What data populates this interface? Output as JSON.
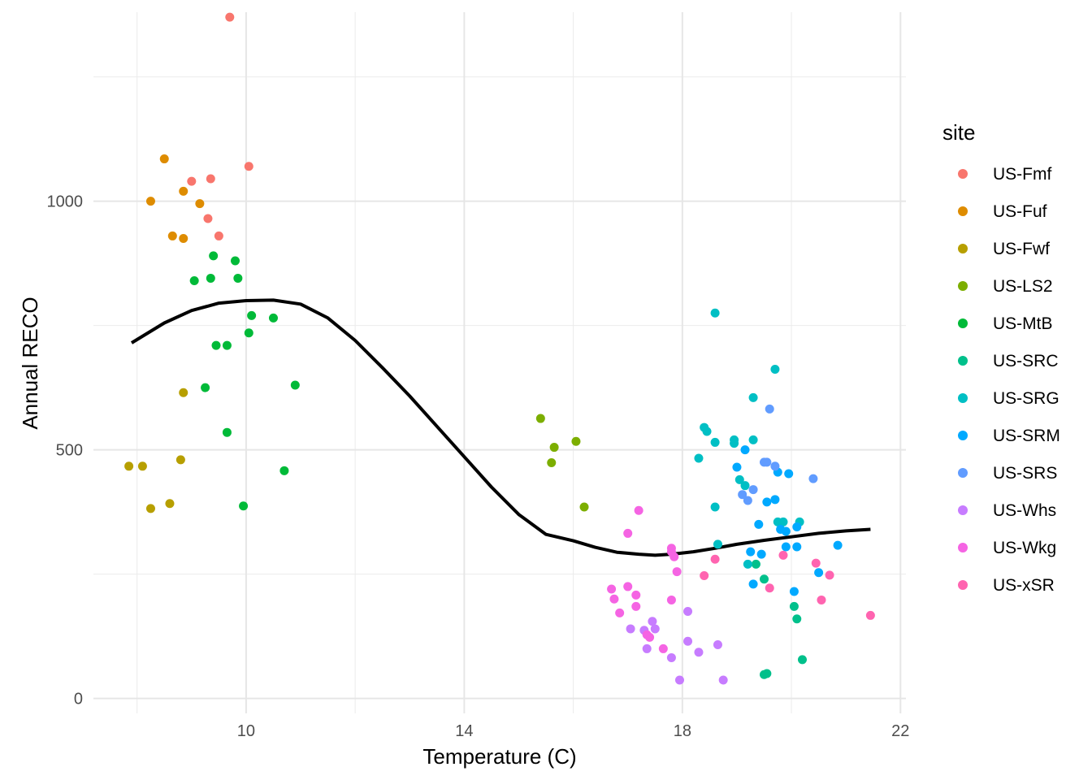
{
  "chart_data": {
    "type": "scatter",
    "xlabel": "Temperature (C)",
    "ylabel": "Annual RECO",
    "xlim": [
      7.2,
      22.1
    ],
    "ylim": [
      -30,
      1380
    ],
    "x_ticks": [
      10,
      14,
      18,
      22
    ],
    "y_ticks": [
      0,
      500,
      1000
    ],
    "x_ticks_minor": [
      8,
      12,
      16,
      20
    ],
    "y_ticks_minor": [
      250,
      750,
      1250
    ],
    "grid": true,
    "legend_title": "site",
    "legend_position": "right",
    "series": [
      {
        "name": "US-Fmf",
        "color": "#F8766D",
        "points": [
          [
            9.7,
            1370
          ],
          [
            9.0,
            1040
          ],
          [
            9.35,
            1045
          ],
          [
            10.05,
            1070
          ],
          [
            9.3,
            965
          ],
          [
            9.5,
            930
          ]
        ]
      },
      {
        "name": "US-Fuf",
        "color": "#DE8C00",
        "points": [
          [
            8.5,
            1085
          ],
          [
            8.25,
            1000
          ],
          [
            8.85,
            1020
          ],
          [
            9.15,
            995
          ],
          [
            8.65,
            930
          ],
          [
            8.85,
            925
          ]
        ]
      },
      {
        "name": "US-Fwf",
        "color": "#B79F00",
        "points": [
          [
            8.85,
            615
          ],
          [
            8.8,
            480
          ],
          [
            7.85,
            467
          ],
          [
            8.1,
            467
          ],
          [
            8.6,
            392
          ],
          [
            8.25,
            382
          ]
        ]
      },
      {
        "name": "US-LS2",
        "color": "#7CAE00",
        "points": [
          [
            15.4,
            563
          ],
          [
            15.65,
            505
          ],
          [
            16.05,
            517
          ],
          [
            15.6,
            474
          ],
          [
            16.2,
            385
          ]
        ]
      },
      {
        "name": "US-MtB",
        "color": "#00BA38",
        "points": [
          [
            9.4,
            890
          ],
          [
            9.8,
            880
          ],
          [
            9.05,
            840
          ],
          [
            9.35,
            845
          ],
          [
            9.85,
            845
          ],
          [
            10.1,
            770
          ],
          [
            10.5,
            765
          ],
          [
            10.05,
            735
          ],
          [
            9.45,
            710
          ],
          [
            9.65,
            710
          ],
          [
            9.25,
            625
          ],
          [
            10.9,
            630
          ],
          [
            9.65,
            535
          ],
          [
            10.7,
            458
          ],
          [
            9.95,
            387
          ]
        ]
      },
      {
        "name": "US-SRC",
        "color": "#00C08B",
        "points": [
          [
            19.5,
            240
          ],
          [
            20.05,
            185
          ],
          [
            20.1,
            160
          ],
          [
            19.35,
            270
          ],
          [
            20.2,
            78
          ],
          [
            19.5,
            48
          ],
          [
            19.55,
            50
          ]
        ]
      },
      {
        "name": "US-SRG",
        "color": "#00BFC4",
        "points": [
          [
            18.6,
            775
          ],
          [
            19.7,
            662
          ],
          [
            19.3,
            605
          ],
          [
            18.4,
            545
          ],
          [
            18.45,
            537
          ],
          [
            18.6,
            515
          ],
          [
            18.95,
            520
          ],
          [
            18.95,
            513
          ],
          [
            19.3,
            520
          ],
          [
            18.3,
            483
          ],
          [
            19.05,
            440
          ],
          [
            19.15,
            428
          ],
          [
            18.6,
            385
          ],
          [
            19.85,
            355
          ],
          [
            20.15,
            355
          ],
          [
            19.75,
            355
          ],
          [
            18.65,
            310
          ],
          [
            19.2,
            270
          ]
        ]
      },
      {
        "name": "US-SRM",
        "color": "#00A9FF",
        "points": [
          [
            19.15,
            500
          ],
          [
            19.0,
            465
          ],
          [
            19.75,
            455
          ],
          [
            19.95,
            452
          ],
          [
            19.7,
            400
          ],
          [
            19.55,
            395
          ],
          [
            19.4,
            350
          ],
          [
            19.8,
            340
          ],
          [
            19.9,
            336
          ],
          [
            20.1,
            345
          ],
          [
            19.9,
            305
          ],
          [
            20.1,
            305
          ],
          [
            19.25,
            295
          ],
          [
            19.45,
            290
          ],
          [
            19.3,
            230
          ],
          [
            20.05,
            215
          ],
          [
            20.5,
            253
          ],
          [
            20.85,
            308
          ]
        ]
      },
      {
        "name": "US-SRS",
        "color": "#619CFF",
        "points": [
          [
            19.6,
            582
          ],
          [
            19.5,
            475
          ],
          [
            19.55,
            475
          ],
          [
            19.7,
            467
          ],
          [
            19.3,
            420
          ],
          [
            19.1,
            410
          ],
          [
            19.2,
            398
          ],
          [
            20.4,
            442
          ]
        ]
      },
      {
        "name": "US-Whs",
        "color": "#C77CFF",
        "points": [
          [
            17.45,
            155
          ],
          [
            17.5,
            140
          ],
          [
            17.3,
            137
          ],
          [
            17.05,
            140
          ],
          [
            17.35,
            100
          ],
          [
            18.1,
            115
          ],
          [
            18.1,
            175
          ],
          [
            18.3,
            93
          ],
          [
            17.8,
            82
          ],
          [
            17.95,
            37
          ],
          [
            18.65,
            108
          ],
          [
            18.75,
            37
          ]
        ]
      },
      {
        "name": "US-Wkg",
        "color": "#F564E3",
        "points": [
          [
            17.2,
            378
          ],
          [
            17.0,
            332
          ],
          [
            17.8,
            302
          ],
          [
            17.8,
            295
          ],
          [
            17.85,
            285
          ],
          [
            17.9,
            255
          ],
          [
            16.7,
            220
          ],
          [
            17.0,
            225
          ],
          [
            17.15,
            208
          ],
          [
            16.75,
            200
          ],
          [
            17.15,
            185
          ],
          [
            16.85,
            172
          ],
          [
            17.8,
            198
          ],
          [
            17.4,
            123
          ],
          [
            17.35,
            128
          ],
          [
            17.65,
            100
          ]
        ]
      },
      {
        "name": "US-xSR",
        "color": "#FF64B0",
        "points": [
          [
            18.6,
            280
          ],
          [
            18.4,
            247
          ],
          [
            19.85,
            288
          ],
          [
            20.45,
            272
          ],
          [
            20.7,
            248
          ],
          [
            19.6,
            222
          ],
          [
            20.55,
            198
          ],
          [
            21.45,
            167
          ]
        ]
      }
    ],
    "fit_curve": {
      "color": "#000000",
      "points": [
        [
          7.9,
          715
        ],
        [
          8.5,
          755
        ],
        [
          9.0,
          780
        ],
        [
          9.5,
          795
        ],
        [
          10.0,
          800
        ],
        [
          10.5,
          801
        ],
        [
          11.0,
          793
        ],
        [
          11.5,
          765
        ],
        [
          12.0,
          720
        ],
        [
          12.5,
          665
        ],
        [
          13.0,
          608
        ],
        [
          13.5,
          547
        ],
        [
          14.0,
          486
        ],
        [
          14.5,
          425
        ],
        [
          15.0,
          370
        ],
        [
          15.5,
          330
        ],
        [
          16.0,
          317
        ],
        [
          16.4,
          304
        ],
        [
          16.8,
          294
        ],
        [
          17.2,
          290
        ],
        [
          17.5,
          288
        ],
        [
          17.8,
          290
        ],
        [
          18.2,
          295
        ],
        [
          18.6,
          302
        ],
        [
          19.0,
          310
        ],
        [
          19.5,
          318
        ],
        [
          20.0,
          325
        ],
        [
          20.5,
          332
        ],
        [
          21.0,
          337
        ],
        [
          21.45,
          340
        ]
      ]
    }
  }
}
